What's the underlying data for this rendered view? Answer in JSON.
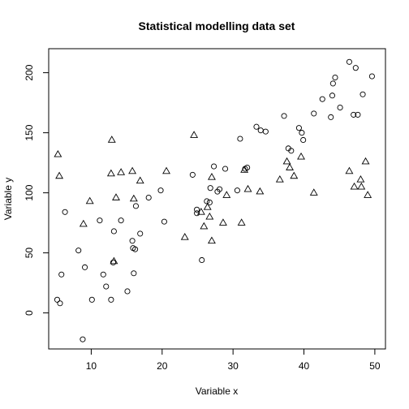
{
  "chart_data": {
    "type": "scatter",
    "title": "Statistical modelling data set",
    "xlabel": "Variable x",
    "ylabel": "Variable y",
    "xlim": [
      4,
      51.5
    ],
    "ylim": [
      -30,
      220
    ],
    "xticks": [
      10,
      20,
      30,
      40,
      50
    ],
    "yticks": [
      0,
      50,
      100,
      150,
      200
    ],
    "grid": false,
    "legend": "none",
    "series": [
      {
        "marker": "circle",
        "points": [
          [
            5.2,
            11
          ],
          [
            5.6,
            8
          ],
          [
            5.8,
            32
          ],
          [
            6.3,
            84
          ],
          [
            8.2,
            52
          ],
          [
            8.8,
            -22
          ],
          [
            9.1,
            38
          ],
          [
            10.1,
            11
          ],
          [
            11.2,
            77
          ],
          [
            11.7,
            32
          ],
          [
            12.1,
            22
          ],
          [
            12.8,
            11
          ],
          [
            13.1,
            42
          ],
          [
            13.2,
            68
          ],
          [
            14.2,
            77
          ],
          [
            15.1,
            18
          ],
          [
            15.8,
            60
          ],
          [
            15.9,
            54
          ],
          [
            16.0,
            33
          ],
          [
            16.2,
            53
          ],
          [
            16.3,
            89
          ],
          [
            16.9,
            66
          ],
          [
            18.1,
            96
          ],
          [
            19.8,
            102
          ],
          [
            20.3,
            76
          ],
          [
            24.3,
            115
          ],
          [
            24.9,
            83
          ],
          [
            24.9,
            86
          ],
          [
            25.6,
            44
          ],
          [
            26.3,
            93
          ],
          [
            26.7,
            92
          ],
          [
            26.8,
            104
          ],
          [
            27.3,
            122
          ],
          [
            27.8,
            101
          ],
          [
            28.1,
            103
          ],
          [
            28.9,
            120
          ],
          [
            30.6,
            102
          ],
          [
            31.0,
            145
          ],
          [
            31.7,
            120
          ],
          [
            32.0,
            121
          ],
          [
            33.3,
            155
          ],
          [
            33.9,
            152
          ],
          [
            34.6,
            151
          ],
          [
            37.2,
            164
          ],
          [
            37.8,
            137
          ],
          [
            38.2,
            135
          ],
          [
            39.3,
            154
          ],
          [
            39.7,
            150
          ],
          [
            39.9,
            144
          ],
          [
            41.4,
            166
          ],
          [
            42.6,
            178
          ],
          [
            43.8,
            163
          ],
          [
            44.0,
            181
          ],
          [
            44.1,
            191
          ],
          [
            44.4,
            196
          ],
          [
            45.1,
            171
          ],
          [
            46.4,
            209
          ],
          [
            47.0,
            165
          ],
          [
            47.3,
            204
          ],
          [
            47.6,
            165
          ],
          [
            48.3,
            182
          ],
          [
            49.6,
            197
          ]
        ]
      },
      {
        "marker": "triangle",
        "points": [
          [
            5.3,
            132
          ],
          [
            5.5,
            114
          ],
          [
            8.9,
            74
          ],
          [
            9.8,
            93
          ],
          [
            12.9,
            144
          ],
          [
            12.8,
            116
          ],
          [
            13.2,
            43
          ],
          [
            13.5,
            96
          ],
          [
            14.2,
            117
          ],
          [
            15.8,
            118
          ],
          [
            16.0,
            95
          ],
          [
            16.9,
            110
          ],
          [
            20.6,
            118
          ],
          [
            23.2,
            63
          ],
          [
            24.5,
            148
          ],
          [
            25.5,
            84
          ],
          [
            25.9,
            72
          ],
          [
            26.4,
            88
          ],
          [
            26.7,
            80
          ],
          [
            27.0,
            60
          ],
          [
            27.0,
            113
          ],
          [
            28.6,
            75
          ],
          [
            29.1,
            98
          ],
          [
            31.2,
            75
          ],
          [
            31.6,
            119
          ],
          [
            32.1,
            103
          ],
          [
            33.8,
            101
          ],
          [
            36.6,
            111
          ],
          [
            37.6,
            126
          ],
          [
            38.0,
            121
          ],
          [
            38.6,
            114
          ],
          [
            39.6,
            130
          ],
          [
            41.4,
            100
          ],
          [
            46.4,
            118
          ],
          [
            47.1,
            105
          ],
          [
            48.0,
            111
          ],
          [
            48.1,
            105
          ],
          [
            48.7,
            126
          ],
          [
            49.0,
            98
          ]
        ]
      }
    ]
  }
}
